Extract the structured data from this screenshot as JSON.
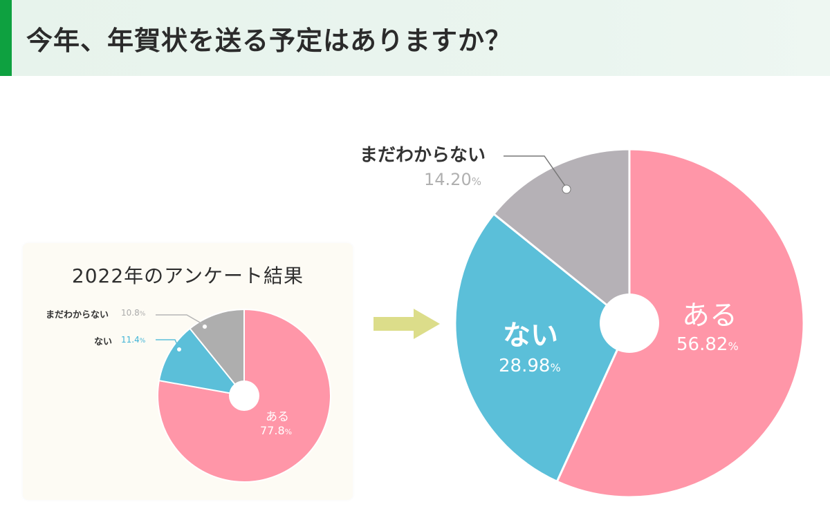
{
  "header": {
    "title": "今年、年賀状を送る予定はありますか？",
    "accent_color": "#0ea140"
  },
  "previous": {
    "title": "2022年のアンケート結果",
    "slices": [
      {
        "label": "ある",
        "value": "77.8",
        "unit": "%"
      },
      {
        "label": "ない",
        "value": "11.4",
        "unit": "%"
      },
      {
        "label": "まだわからない",
        "value": "10.8",
        "unit": "%"
      }
    ]
  },
  "current": {
    "slices": [
      {
        "label": "ある",
        "value": "56.82",
        "unit": "%"
      },
      {
        "label": "ない",
        "value": "28.98",
        "unit": "%"
      },
      {
        "label": "まだわからない",
        "value": "14.20",
        "unit": "%"
      }
    ]
  },
  "colors": {
    "aru": "#ff96a8",
    "nai": "#5bbfd9",
    "wakaranai_small": "#aeaeae",
    "wakaranai_large": "#b5b1b6",
    "arrow": "#dcdd8a"
  },
  "chart_data": [
    {
      "type": "pie",
      "title": "2022年のアンケート結果",
      "categories": [
        "ある",
        "ない",
        "まだわからない"
      ],
      "values": [
        77.8,
        11.4,
        10.8
      ],
      "unit": "%",
      "donut_hole": true,
      "legend_position": "callout-left"
    },
    {
      "type": "pie",
      "title": "今年、年賀状を送る予定はありますか？",
      "categories": [
        "ある",
        "ない",
        "まだわからない"
      ],
      "values": [
        56.82,
        28.98,
        14.2
      ],
      "unit": "%",
      "donut_hole": true,
      "legend_position": "inside-labels"
    }
  ]
}
